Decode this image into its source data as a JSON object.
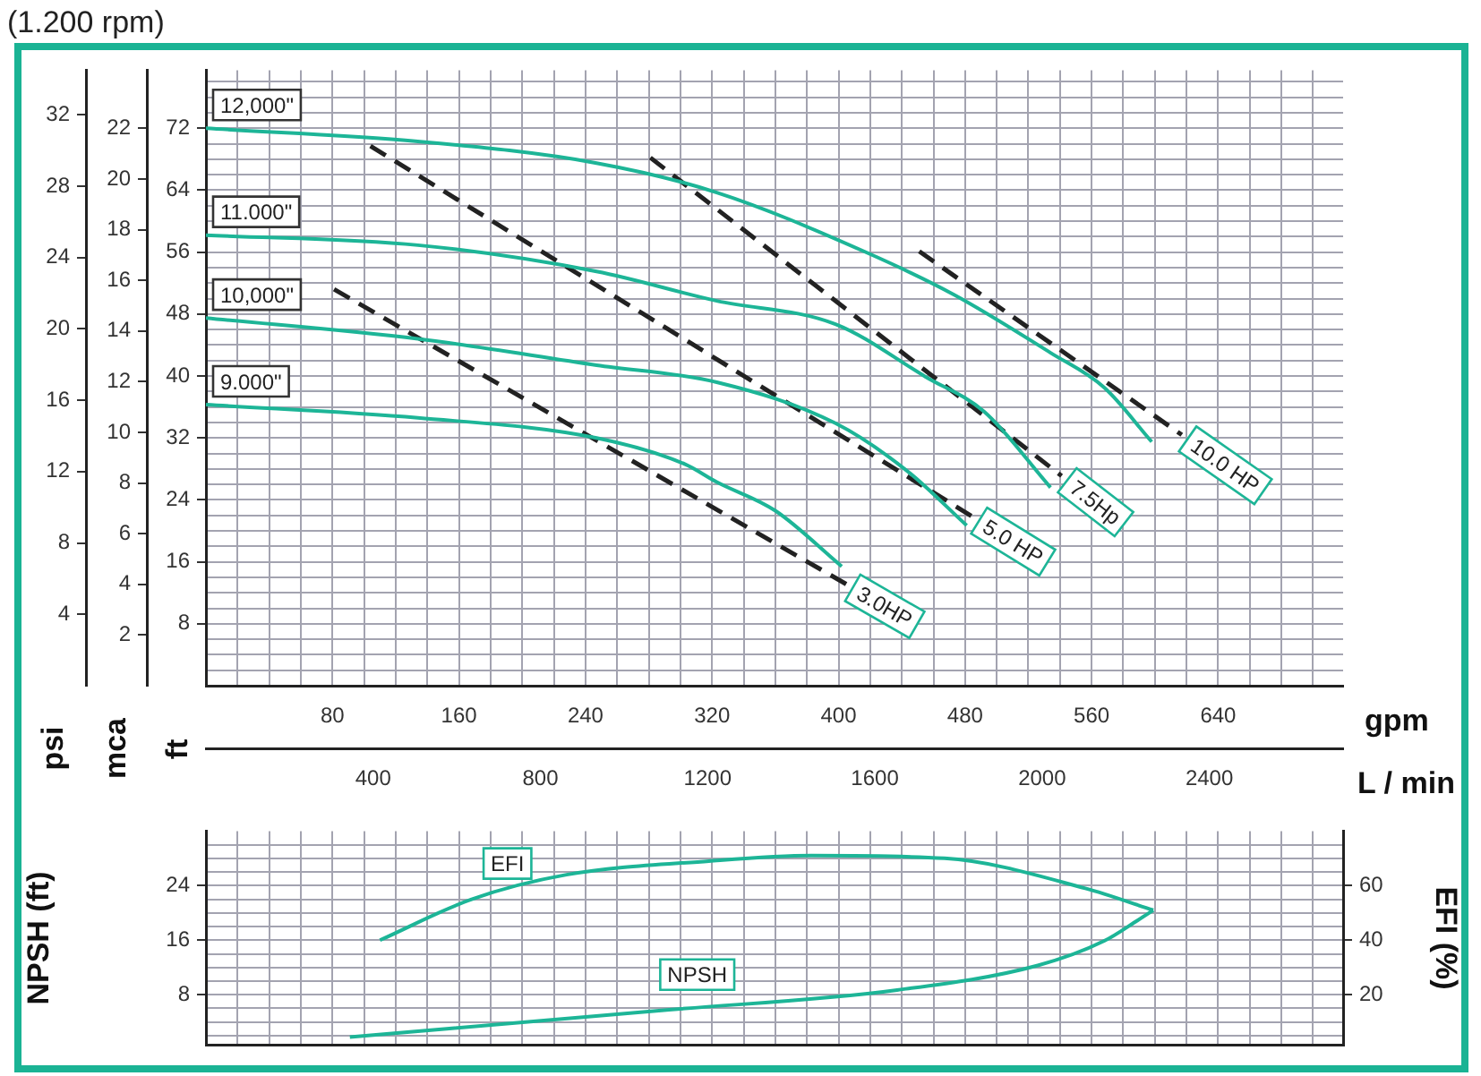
{
  "chart_data": [
    {
      "type": "line",
      "title": "(1.200 rpm)",
      "xlabel": "gpm",
      "x2label": "L / min",
      "ylabel": "ft",
      "y2label": "mca",
      "y3label": "psi",
      "grid": true,
      "legend": false,
      "marker": "none",
      "xlim": [
        0,
        719
      ],
      "xticks": [
        {
          "value": 0,
          "label": null
        },
        {
          "value": 20,
          "label": null
        },
        {
          "value": 40,
          "label": null
        },
        {
          "value": 60,
          "label": null
        },
        80,
        {
          "value": 100,
          "label": null
        },
        {
          "value": 120,
          "label": null
        },
        {
          "value": 140,
          "label": null
        },
        160,
        {
          "value": 180,
          "label": null
        },
        {
          "value": 200,
          "label": null
        },
        {
          "value": 220,
          "label": null
        },
        240,
        {
          "value": 260,
          "label": null
        },
        {
          "value": 280,
          "label": null
        },
        {
          "value": 300,
          "label": null
        },
        320,
        {
          "value": 340,
          "label": null
        },
        {
          "value": 360,
          "label": null
        },
        {
          "value": 380,
          "label": null
        },
        400,
        {
          "value": 420,
          "label": null
        },
        {
          "value": 440,
          "label": null
        },
        {
          "value": 460,
          "label": null
        },
        480,
        {
          "value": 500,
          "label": null
        },
        {
          "value": 520,
          "label": null
        },
        {
          "value": 540,
          "label": null
        },
        560,
        {
          "value": 580,
          "label": null
        },
        {
          "value": 600,
          "label": null
        },
        {
          "value": 620,
          "label": null
        },
        640,
        {
          "value": 660,
          "label": null
        },
        {
          "value": 680,
          "label": null
        },
        {
          "value": 700,
          "label": null
        }
      ],
      "x2lim": [
        0,
        2720
      ],
      "x2ticks": [
        400,
        800,
        1200,
        1600,
        2000,
        2400
      ],
      "ylim": [
        0,
        79.5
      ],
      "yticks": [
        {
          "value": 0,
          "label": null
        },
        {
          "value": 2,
          "label": null
        },
        {
          "value": 4,
          "label": null
        },
        {
          "value": 6,
          "label": null
        },
        8,
        {
          "value": 10,
          "label": null
        },
        {
          "value": 12,
          "label": null
        },
        {
          "value": 14,
          "label": null
        },
        16,
        {
          "value": 18,
          "label": null
        },
        {
          "value": 20,
          "label": null
        },
        {
          "value": 22,
          "label": null
        },
        24,
        {
          "value": 26,
          "label": null
        },
        {
          "value": 28,
          "label": null
        },
        {
          "value": 30,
          "label": null
        },
        32,
        {
          "value": 34,
          "label": null
        },
        {
          "value": 36,
          "label": null
        },
        {
          "value": 38,
          "label": null
        },
        40,
        {
          "value": 42,
          "label": null
        },
        {
          "value": 44,
          "label": null
        },
        {
          "value": 46,
          "label": null
        },
        48,
        {
          "value": 50,
          "label": null
        },
        {
          "value": 52,
          "label": null
        },
        {
          "value": 54,
          "label": null
        },
        56,
        {
          "value": 58,
          "label": null
        },
        {
          "value": 60,
          "label": null
        },
        {
          "value": 62,
          "label": null
        },
        64,
        {
          "value": 66,
          "label": null
        },
        {
          "value": 68,
          "label": null
        },
        {
          "value": 70,
          "label": null
        },
        72,
        {
          "value": 74,
          "label": null
        },
        {
          "value": 76,
          "label": null
        },
        {
          "value": 78,
          "label": null
        }
      ],
      "y2lim": [
        0,
        24.3
      ],
      "y2ticks": [
        2,
        4,
        6,
        8,
        10,
        12,
        14,
        16,
        18,
        20,
        22
      ],
      "y3lim": [
        0,
        34.5
      ],
      "y3ticks": [
        4,
        8,
        12,
        16,
        20,
        24,
        28,
        32
      ],
      "series": [
        {
          "name": "12,000\"",
          "color": "#1db597",
          "x": [
            0,
            134,
            247,
            323,
            416,
            473,
            534,
            568,
            598
          ],
          "values": [
            72,
            70.3,
            67.5,
            63.7,
            56.1,
            50.5,
            43,
            38.5,
            31.5
          ]
        },
        {
          "name": "11.000\"",
          "color": "#1db597",
          "x": [
            0,
            134,
            247,
            323,
            398,
            455,
            492,
            534
          ],
          "values": [
            58.2,
            56.9,
            53.5,
            49.7,
            46.7,
            39.9,
            35.4,
            25.6
          ]
        },
        {
          "name": "10,000\"",
          "color": "#1db597",
          "x": [
            0,
            134,
            247,
            323,
            398,
            443,
            481
          ],
          "values": [
            47.5,
            44.8,
            41.4,
            39.2,
            33.9,
            27.8,
            20.7
          ]
        },
        {
          "name": "9.000\"",
          "color": "#1db597",
          "x": [
            0,
            134,
            247,
            303,
            323,
            360,
            402
          ],
          "values": [
            36.3,
            34.6,
            32,
            28.6,
            26.3,
            22.6,
            15.4
          ]
        },
        {
          "name": "3.0HP",
          "color": "#222222",
          "line_style": "dashed",
          "x": [
            81,
            405
          ],
          "values": [
            51.2,
            13.1
          ]
        },
        {
          "name": "5.0 HP",
          "color": "#222222",
          "line_style": "dashed",
          "x": [
            104,
            485
          ],
          "values": [
            69.7,
            21.8
          ]
        },
        {
          "name": "7.5Hp",
          "color": "#222222",
          "line_style": "dashed",
          "x": [
            281,
            541
          ],
          "values": [
            68.2,
            27.1
          ]
        },
        {
          "name": "10.0 HP",
          "color": "#222222",
          "line_style": "dashed",
          "x": [
            451,
            617
          ],
          "values": [
            56.1,
            32.4
          ]
        }
      ]
    },
    {
      "type": "line",
      "ylabel": "NPSH (ft)",
      "y2label": "EFI (%)",
      "grid": true,
      "legend": false,
      "marker": "none",
      "tick_labels": "y",
      "xlim": [
        0,
        719
      ],
      "xticks": [
        {
          "value": 0,
          "label": null
        },
        {
          "value": 20,
          "label": null
        },
        {
          "value": 40,
          "label": null
        },
        {
          "value": 60,
          "label": null
        },
        {
          "value": 80,
          "label": null
        },
        {
          "value": 100,
          "label": null
        },
        {
          "value": 120,
          "label": null
        },
        {
          "value": 140,
          "label": null
        },
        {
          "value": 160,
          "label": null
        },
        {
          "value": 180,
          "label": null
        },
        {
          "value": 200,
          "label": null
        },
        {
          "value": 220,
          "label": null
        },
        {
          "value": 240,
          "label": null
        },
        {
          "value": 260,
          "label": null
        },
        {
          "value": 280,
          "label": null
        },
        {
          "value": 300,
          "label": null
        },
        {
          "value": 320,
          "label": null
        },
        {
          "value": 340,
          "label": null
        },
        {
          "value": 360,
          "label": null
        },
        {
          "value": 380,
          "label": null
        },
        {
          "value": 400,
          "label": null
        },
        {
          "value": 420,
          "label": null
        },
        {
          "value": 440,
          "label": null
        },
        {
          "value": 460,
          "label": null
        },
        {
          "value": 480,
          "label": null
        },
        {
          "value": 500,
          "label": null
        },
        {
          "value": 520,
          "label": null
        },
        {
          "value": 540,
          "label": null
        },
        {
          "value": 560,
          "label": null
        },
        {
          "value": 580,
          "label": null
        },
        {
          "value": 600,
          "label": null
        },
        {
          "value": 620,
          "label": null
        },
        {
          "value": 640,
          "label": null
        },
        {
          "value": 660,
          "label": null
        },
        {
          "value": 680,
          "label": null
        },
        {
          "value": 700,
          "label": null
        }
      ],
      "ylim": [
        0.6,
        32
      ],
      "yticks": [
        {
          "value": 2,
          "label": null
        },
        {
          "value": 4,
          "label": null
        },
        {
          "value": 6,
          "label": null
        },
        8,
        {
          "value": 10,
          "label": null
        },
        {
          "value": 12,
          "label": null
        },
        {
          "value": 14,
          "label": null
        },
        16,
        {
          "value": 18,
          "label": null
        },
        {
          "value": 20,
          "label": null
        },
        {
          "value": 22,
          "label": null
        },
        24,
        {
          "value": 26,
          "label": null
        },
        {
          "value": 28,
          "label": null
        },
        {
          "value": 30,
          "label": null
        }
      ],
      "y2lim": [
        1.5,
        80
      ],
      "y2ticks": [
        20,
        40,
        60
      ],
      "series": [
        {
          "name": "NPSH",
          "color": "#1db597",
          "x": [
            91,
            288,
            437,
            526,
            568,
            589,
            599
          ],
          "values": [
            1.8,
            5.7,
            8.7,
            12.3,
            15.9,
            18.9,
            20.4
          ]
        },
        {
          "name": "EFI",
          "color": "#1db597",
          "axis": "y2",
          "x": [
            110,
            168,
            228,
            318,
            383,
            467,
            556,
            599
          ],
          "values": [
            40,
            55,
            64,
            69,
            71,
            70,
            59,
            51
          ]
        }
      ]
    }
  ]
}
